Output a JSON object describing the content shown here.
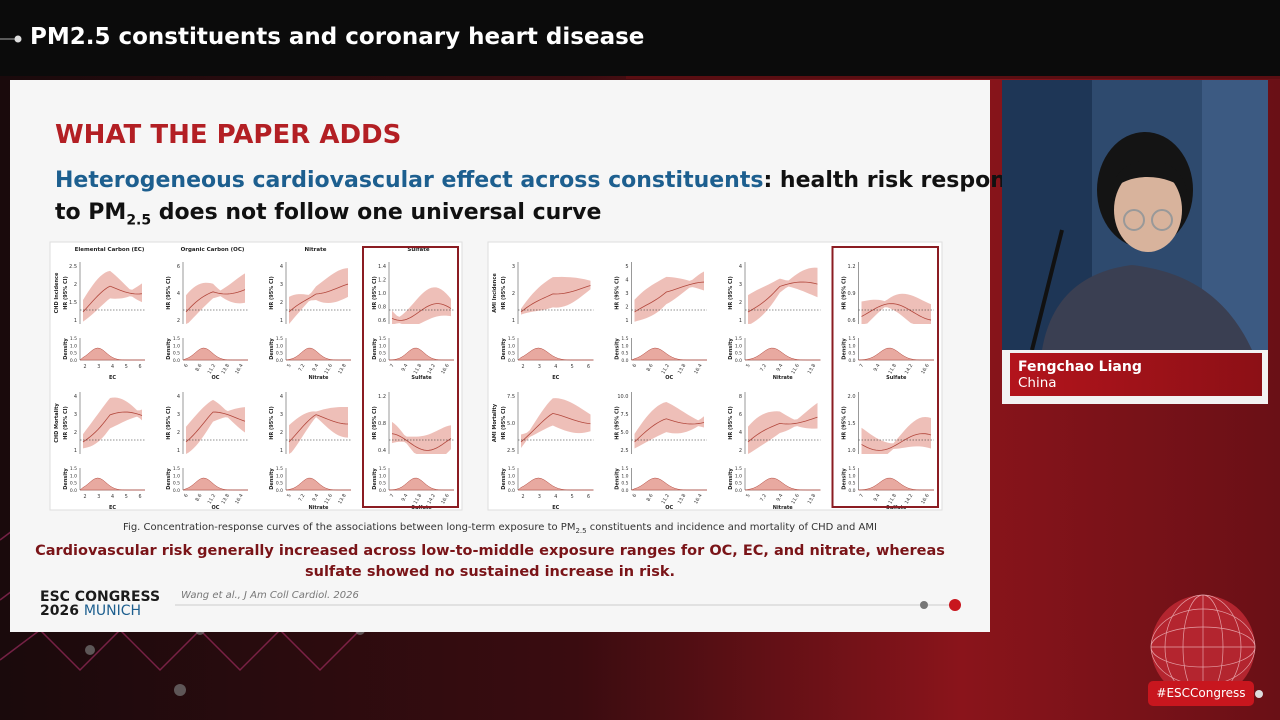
{
  "header": {
    "title": "PM2.5 constituents and coronary heart disease"
  },
  "slide": {
    "heading": "WHAT THE PAPER ADDS",
    "subheading": {
      "highlight": "Heterogeneous cardiovascular effect across constituents",
      "rest": ": health risk response",
      "line2_start": "to PM",
      "line2_sub": "2.5",
      "line2_end": " does not follow one universal curve"
    },
    "figure_common": {
      "hr_axis_label": "HR (95% CI)",
      "density_axis_label": "Density",
      "density_ticks": [
        "0.0",
        "0.5",
        "1.0",
        "1.5"
      ],
      "x_labels": [
        "EC",
        "OC",
        "Nitrate",
        "Sulfate"
      ],
      "x_ticks": [
        [
          "2",
          "3",
          "4",
          "5",
          "6"
        ],
        [
          "6",
          "8.6",
          "11.2",
          "13.8",
          "16.4"
        ],
        [
          "5",
          "7.2",
          "9.4",
          "11.6",
          "13.8"
        ],
        [
          "7",
          "9.4",
          "11.8",
          "14.2",
          "16.6"
        ]
      ]
    },
    "figures": [
      {
        "column_titles": [
          "Elemental Carbon (EC)",
          "Organic Carbon (OC)",
          "Nitrate",
          "Sulfate"
        ],
        "rows": [
          {
            "label": "CHD Incidence",
            "hr_yticks": [
              [
                "1",
                "1.5",
                "2",
                "2.5"
              ],
              [
                "2",
                "4",
                "6"
              ],
              [
                "1",
                "2",
                "3",
                "4"
              ],
              [
                "0.6",
                "0.8",
                "1.0",
                "1.2",
                "1.4"
              ]
            ]
          },
          {
            "label": "CHD Mortality",
            "hr_yticks": [
              [
                "1",
                "2",
                "3",
                "4"
              ],
              [
                "1",
                "2",
                "3",
                "4"
              ],
              [
                "1",
                "2",
                "3",
                "4"
              ],
              [
                "0.4",
                "0.8",
                "1.2"
              ]
            ]
          }
        ]
      },
      {
        "rows": [
          {
            "label": "AMI Incidence",
            "hr_yticks": [
              [
                "1",
                "2",
                "3"
              ],
              [
                "1",
                "2",
                "3",
                "4",
                "5"
              ],
              [
                "1",
                "2",
                "3",
                "4"
              ],
              [
                "0.6",
                "0.9",
                "1.2"
              ]
            ]
          },
          {
            "label": "AMI Mortality",
            "hr_yticks": [
              [
                "2.5",
                "5.0",
                "7.5"
              ],
              [
                "2.5",
                "5.0",
                "7.5",
                "10.0"
              ],
              [
                "2",
                "4",
                "6",
                "8"
              ],
              [
                "1.0",
                "1.5",
                "2.0"
              ]
            ]
          }
        ]
      }
    ],
    "caption": {
      "start": "Fig. Concentration-response curves of the associations between long-term exposure to PM",
      "sub": "2.5",
      "end": " constituents and incidence and mortality of CHD and AMI"
    },
    "conclusion": [
      "Cardiovascular risk generally increased across low-to-middle exposure ranges for OC, EC, and nitrate, whereas",
      "sulfate showed no sustained increase in risk."
    ],
    "logo": {
      "line1": "ESC CONGRESS",
      "year": "2026",
      "city": "MUNICH"
    },
    "citation": "Wang et al., J Am Coll Cardiol. 2026"
  },
  "speaker": {
    "name": "Fengchao Liang",
    "country": "China"
  },
  "hashtag": "#ESCCongress"
}
